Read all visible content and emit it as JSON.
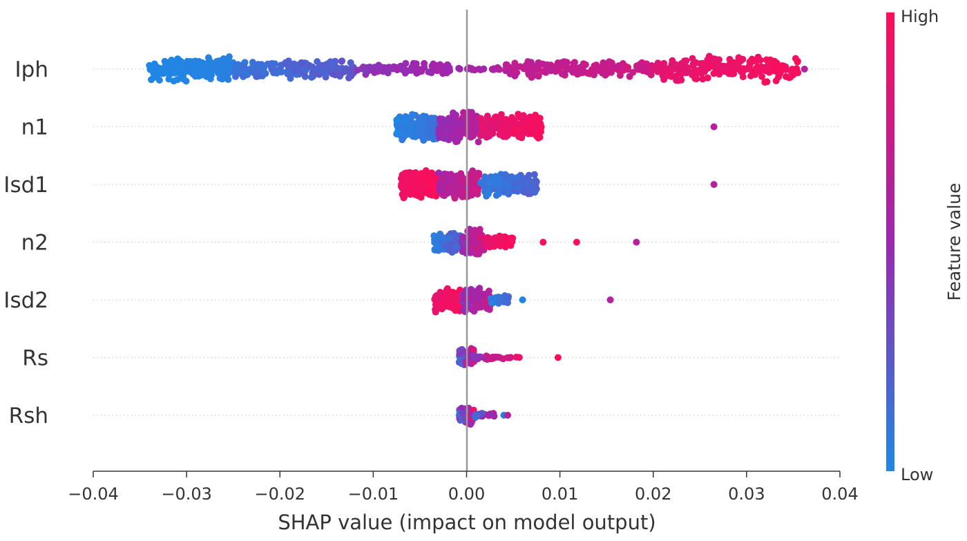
{
  "chart_data": {
    "type": "scatter",
    "subtype": "shap-beeswarm",
    "title": "",
    "xlabel": "SHAP value (impact on model output)",
    "ylabel": "",
    "xlim": [
      -0.04,
      0.04
    ],
    "xticks": [
      -0.04,
      -0.03,
      -0.02,
      -0.01,
      0.0,
      0.01,
      0.02,
      0.03,
      0.04
    ],
    "xtick_labels": [
      "−0.04",
      "−0.03",
      "−0.02",
      "−0.01",
      "0.00",
      "0.01",
      "0.02",
      "0.03",
      "0.04"
    ],
    "features": [
      "Iph",
      "n1",
      "Isd1",
      "n2",
      "Isd2",
      "Rs",
      "Rsh"
    ],
    "colorbar": {
      "label": "Feature value",
      "high_label": "High",
      "low_label": "Low",
      "low_color": "#1e88e5",
      "high_color": "#ff0d57"
    },
    "zero_line_color": "#999999",
    "series": [
      {
        "name": "Iph",
        "segments": [
          {
            "from": -0.034,
            "to": -0.025,
            "low": 0.0,
            "high": 0.05,
            "spread": 0.75,
            "count": 190
          },
          {
            "from": -0.025,
            "to": -0.012,
            "low": 0.05,
            "high": 0.3,
            "spread": 0.55,
            "count": 170
          },
          {
            "from": -0.012,
            "to": -0.002,
            "low": 0.35,
            "high": 0.6,
            "spread": 0.35,
            "count": 90
          },
          {
            "from": -0.002,
            "to": 0.004,
            "low": 0.45,
            "high": 0.65,
            "spread": 0.1,
            "count": 20
          },
          {
            "from": 0.004,
            "to": 0.02,
            "low": 0.6,
            "high": 0.8,
            "spread": 0.5,
            "count": 170
          },
          {
            "from": 0.02,
            "to": 0.0355,
            "low": 0.82,
            "high": 1.0,
            "spread": 0.75,
            "count": 200
          }
        ],
        "points": [
          {
            "x": 0.0362,
            "v": 0.62
          }
        ]
      },
      {
        "name": "n1",
        "segments": [
          {
            "from": -0.0075,
            "to": -0.003,
            "low": 0.0,
            "high": 0.15,
            "spread": 0.8,
            "count": 170
          },
          {
            "from": -0.003,
            "to": 0.0015,
            "low": 0.4,
            "high": 0.7,
            "spread": 0.9,
            "count": 190
          },
          {
            "from": 0.0015,
            "to": 0.008,
            "low": 0.8,
            "high": 1.0,
            "spread": 0.75,
            "count": 190
          }
        ],
        "points": [
          {
            "x": 0.0265,
            "v": 0.62
          }
        ]
      },
      {
        "name": "Isd1",
        "segments": [
          {
            "from": -0.007,
            "to": -0.003,
            "low": 0.9,
            "high": 1.0,
            "spread": 0.8,
            "count": 180
          },
          {
            "from": -0.003,
            "to": 0.0015,
            "low": 0.5,
            "high": 0.85,
            "spread": 0.85,
            "count": 180
          },
          {
            "from": 0.0015,
            "to": 0.0075,
            "low": 0.0,
            "high": 0.25,
            "spread": 0.7,
            "count": 160
          }
        ],
        "points": [
          {
            "x": 0.0265,
            "v": 0.62
          }
        ]
      },
      {
        "name": "n2",
        "segments": [
          {
            "from": -0.0035,
            "to": -0.0005,
            "low": 0.0,
            "high": 0.3,
            "spread": 0.6,
            "count": 110
          },
          {
            "from": -0.0005,
            "to": 0.002,
            "low": 0.4,
            "high": 0.85,
            "spread": 0.75,
            "count": 130
          },
          {
            "from": 0.002,
            "to": 0.005,
            "low": 0.85,
            "high": 1.0,
            "spread": 0.35,
            "count": 60
          }
        ],
        "points": [
          {
            "x": 0.0082,
            "v": 0.97
          },
          {
            "x": 0.0118,
            "v": 0.97
          },
          {
            "x": 0.0182,
            "v": 0.62
          }
        ]
      },
      {
        "name": "Isd2",
        "segments": [
          {
            "from": -0.0035,
            "to": -0.0005,
            "low": 0.85,
            "high": 1.0,
            "spread": 0.7,
            "count": 120
          },
          {
            "from": -0.0005,
            "to": 0.0025,
            "low": 0.4,
            "high": 0.75,
            "spread": 0.7,
            "count": 110
          },
          {
            "from": 0.0025,
            "to": 0.0045,
            "low": 0.0,
            "high": 0.2,
            "spread": 0.3,
            "count": 35
          }
        ],
        "points": [
          {
            "x": 0.006,
            "v": 0.02
          },
          {
            "x": 0.0154,
            "v": 0.62
          }
        ]
      },
      {
        "name": "Rs",
        "segments": [
          {
            "from": -0.0008,
            "to": 0.0008,
            "low": 0.0,
            "high": 1.0,
            "spread": 0.55,
            "count": 90
          },
          {
            "from": 0.0008,
            "to": 0.003,
            "low": 0.2,
            "high": 1.0,
            "spread": 0.15,
            "count": 30
          },
          {
            "from": 0.003,
            "to": 0.0058,
            "low": 0.6,
            "high": 1.0,
            "spread": 0.1,
            "count": 10
          }
        ],
        "points": [
          {
            "x": 0.0098,
            "v": 0.97
          }
        ]
      },
      {
        "name": "Rsh",
        "segments": [
          {
            "from": -0.0008,
            "to": 0.0008,
            "low": 0.0,
            "high": 1.0,
            "spread": 0.55,
            "count": 90
          },
          {
            "from": 0.0008,
            "to": 0.003,
            "low": 0.0,
            "high": 0.8,
            "spread": 0.15,
            "count": 25
          }
        ],
        "points": [
          {
            "x": 0.004,
            "v": 0.05
          },
          {
            "x": 0.0044,
            "v": 0.62
          }
        ]
      }
    ]
  }
}
